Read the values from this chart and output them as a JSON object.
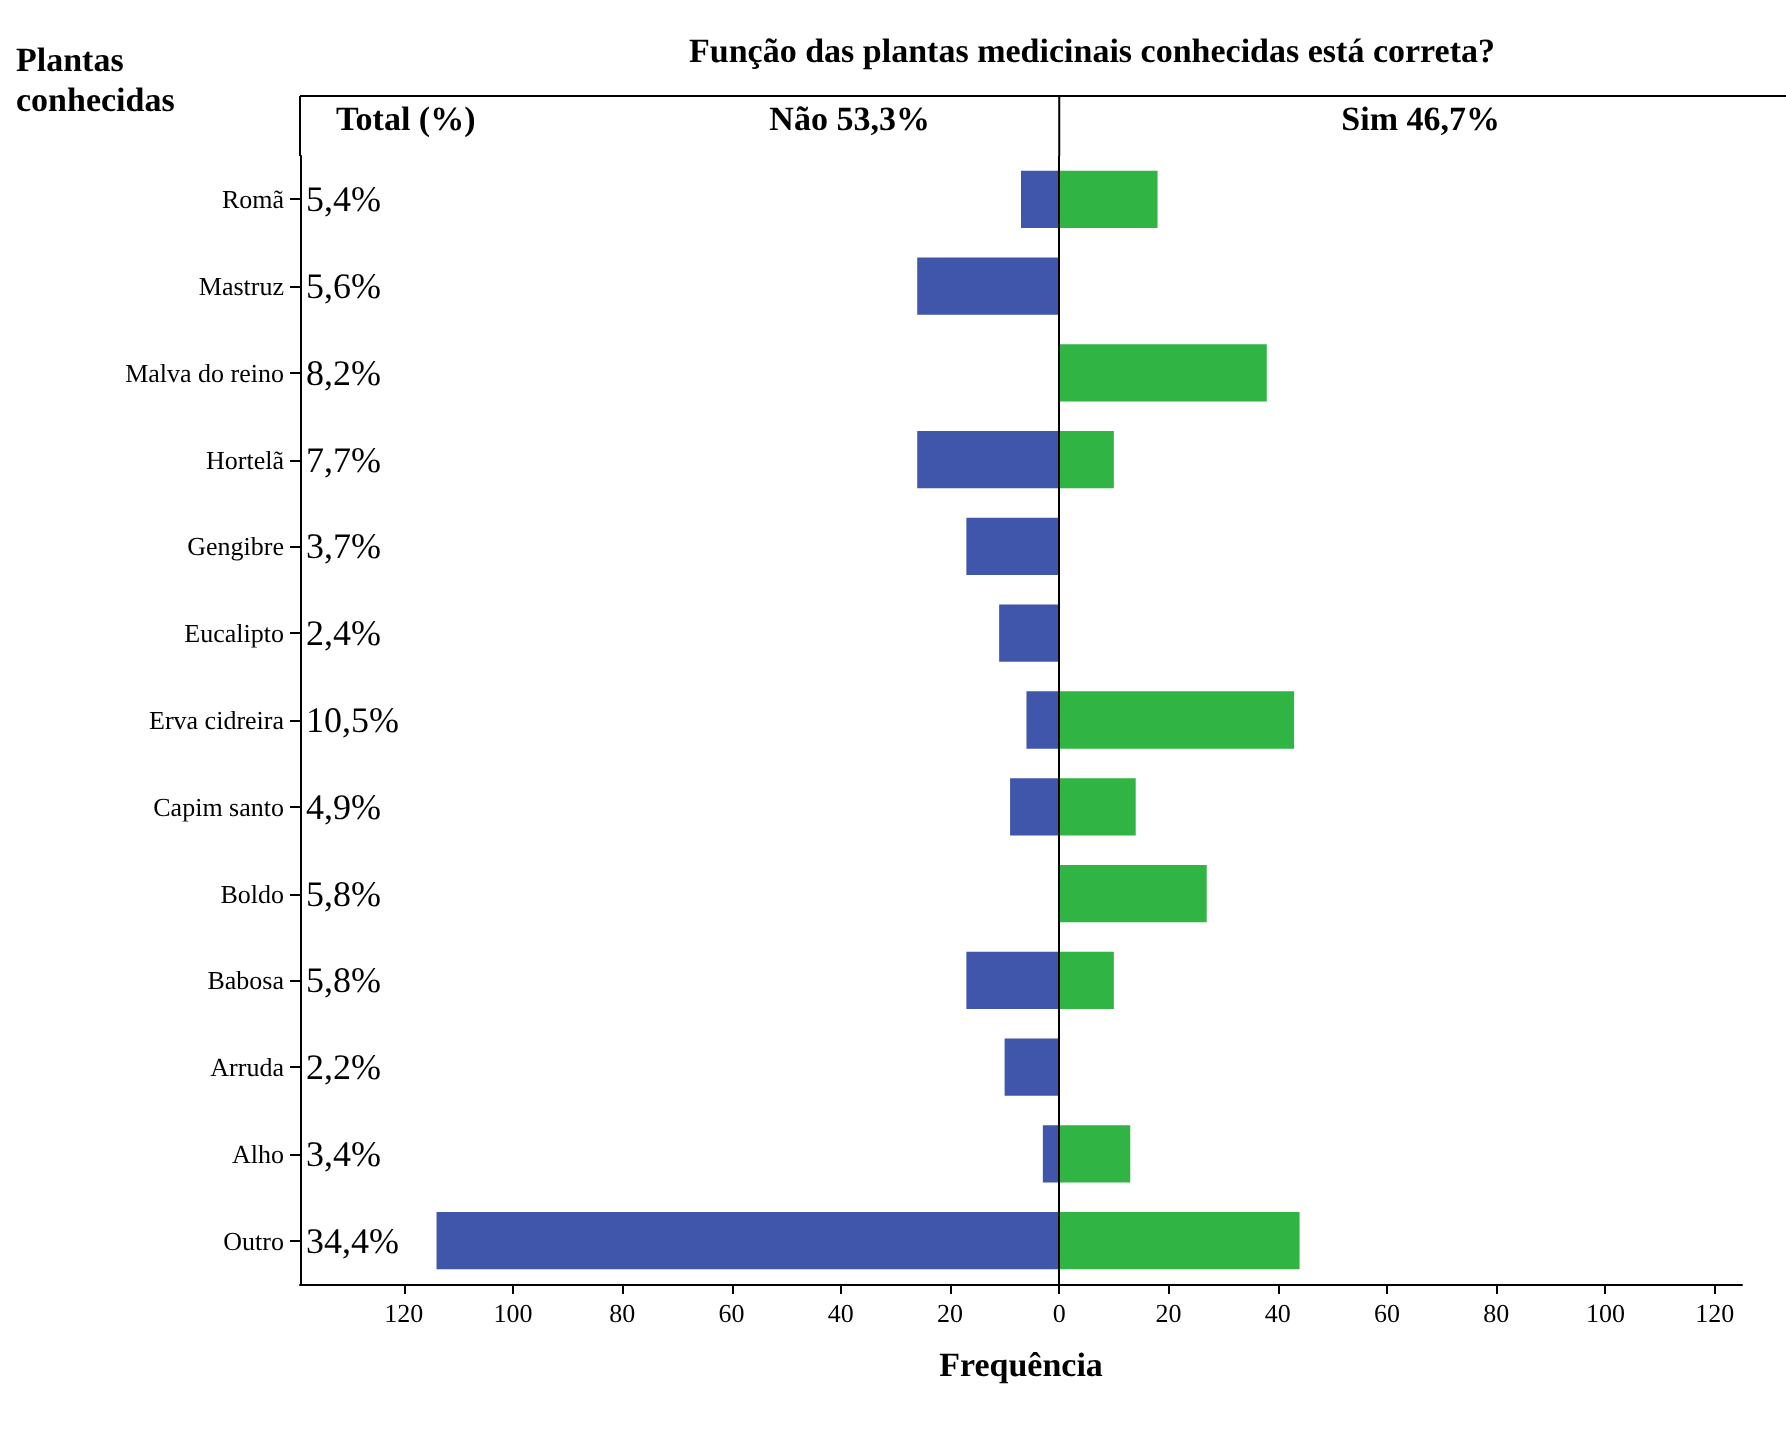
{
  "chart_data": {
    "type": "bar",
    "orientation": "horizontal",
    "stacked": true,
    "title": "Função das plantas medicinais conhecidas está correta?",
    "xlabel": "Frequência",
    "ylabel": "Plantas conhecidas",
    "categories": [
      "Romã",
      "Mastruz",
      "Malva do reino",
      "Hortelã",
      "Gengibre",
      "Eucalipto",
      "Erva cidreira",
      "Capim santo",
      "Boldo",
      "Babosa",
      "Arruda",
      "Alho",
      "Outro"
    ],
    "series": [
      {
        "name": "Não 53,3%",
        "color": "#3f56ab",
        "values": [
          -7,
          -26,
          0,
          -26,
          -17,
          -11,
          -6,
          -9,
          0,
          -17,
          -10,
          -3,
          -114
        ]
      },
      {
        "name": "Sim 46,7%",
        "color": "#30b444",
        "values": [
          18,
          0,
          38,
          10,
          0,
          0,
          43,
          14,
          27,
          10,
          0,
          13,
          44
        ]
      }
    ],
    "xlim": [
      -139,
      125
    ],
    "xticks": [
      {
        "value": -120,
        "label": "120"
      },
      {
        "value": -100,
        "label": "100"
      },
      {
        "value": -80,
        "label": "80"
      },
      {
        "value": -60,
        "label": "60"
      },
      {
        "value": -40,
        "label": "40"
      },
      {
        "value": -20,
        "label": "20"
      },
      0,
      20,
      40,
      60,
      80,
      100,
      120
    ],
    "ref_lines": [
      {
        "axis": "x",
        "value": 0,
        "color": "#000000"
      }
    ],
    "annotations": [
      "Total (%)",
      "5,4%",
      "5,6%",
      "8,2%",
      "7,7%",
      "3,7%",
      "2,4%",
      "10,5%",
      "4,9%",
      "5,8%",
      "5,8%",
      "2,2%",
      "3,4%",
      "34,4%"
    ],
    "grid": false,
    "legend": false
  }
}
